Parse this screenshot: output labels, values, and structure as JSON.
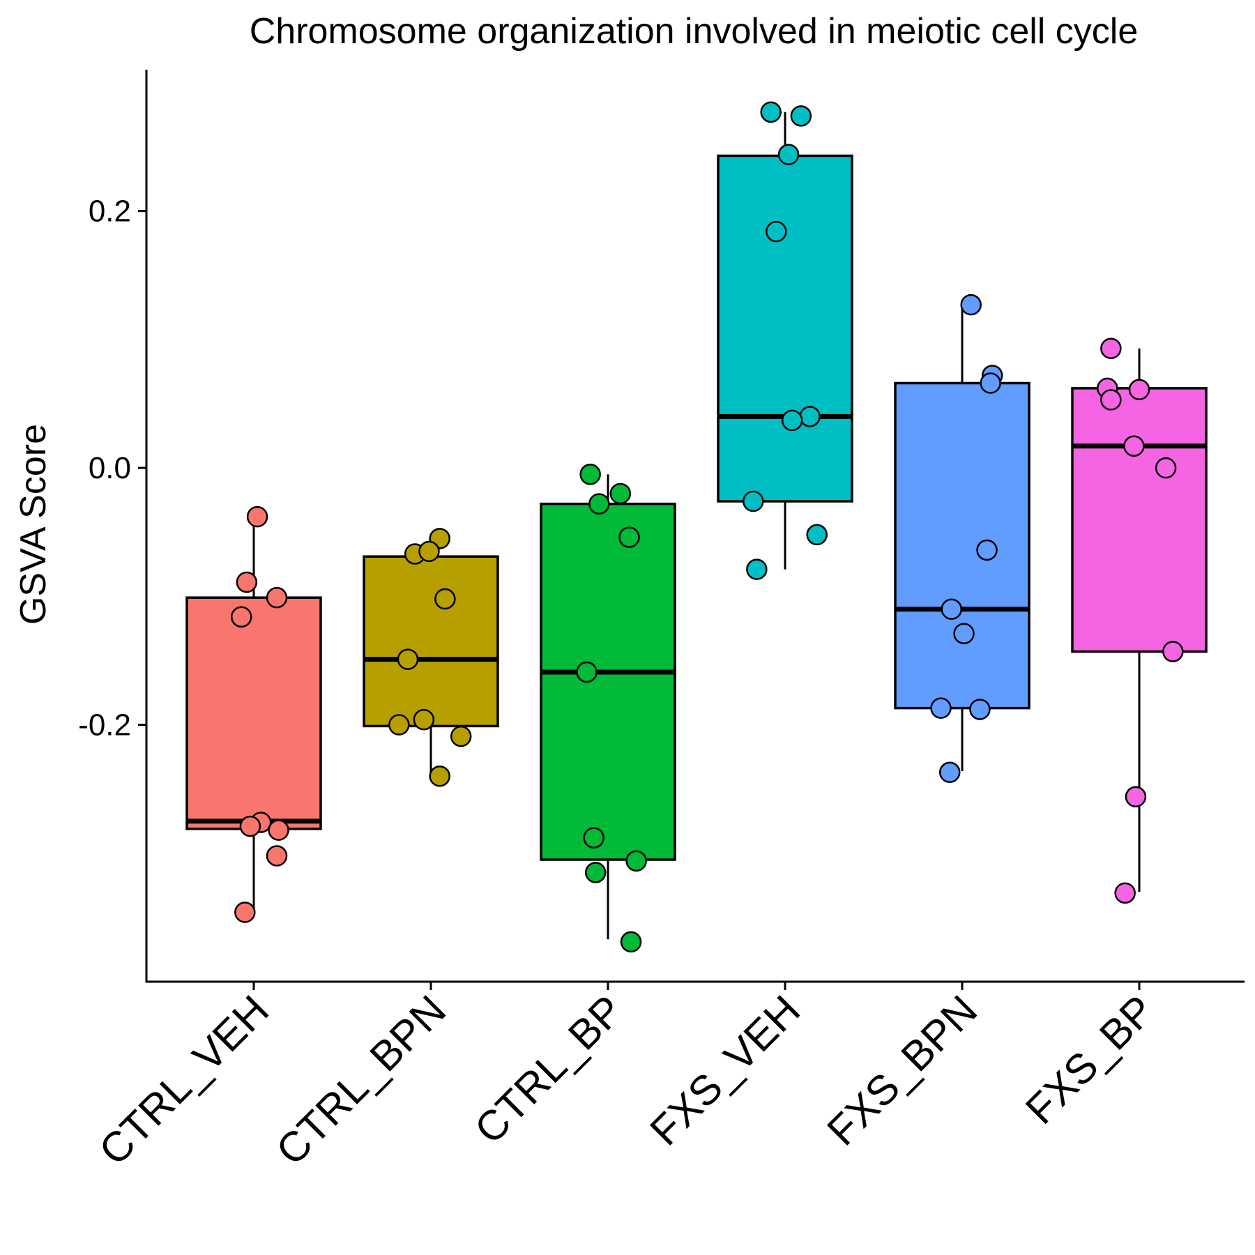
{
  "chart_data": {
    "type": "box",
    "title": "Chromosome organization involved in meiotic cell cycle",
    "xlabel": "",
    "ylabel": "GSVA Score",
    "ylim": [
      -0.4,
      0.31
    ],
    "yticks": [
      -0.2,
      0.0,
      0.2
    ],
    "ytick_labels": [
      "-0.2",
      "0.0",
      "0.2"
    ],
    "grid": false,
    "legend": "none",
    "categories": [
      "CTRL_VEH",
      "CTRL_BPN",
      "CTRL_BP",
      "FXS_VEH",
      "FXS_BPN",
      "FXS_BP"
    ],
    "colors": [
      "#F8766D",
      "#B79F00",
      "#00BA38",
      "#00BFC4",
      "#619CFF",
      "#F564E3"
    ],
    "boxes": [
      {
        "category": "CTRL_VEH",
        "whisker_low": -0.345,
        "q1": -0.281,
        "median": -0.275,
        "q3": -0.101,
        "whisker_high": -0.037
      },
      {
        "category": "CTRL_BPN",
        "whisker_low": -0.24,
        "q1": -0.201,
        "median": -0.149,
        "q3": -0.069,
        "whisker_high": -0.056
      },
      {
        "category": "CTRL_BP",
        "whisker_low": -0.367,
        "q1": -0.305,
        "median": -0.159,
        "q3": -0.028,
        "whisker_high": -0.005
      },
      {
        "category": "FXS_VEH",
        "whisker_low": -0.079,
        "q1": -0.026,
        "median": 0.04,
        "q3": 0.243,
        "whisker_high": 0.277
      },
      {
        "category": "FXS_BPN",
        "whisker_low": -0.236,
        "q1": -0.187,
        "median": -0.11,
        "q3": 0.066,
        "whisker_high": 0.126
      },
      {
        "category": "FXS_BP",
        "whisker_low": -0.33,
        "q1": -0.143,
        "median": 0.017,
        "q3": 0.062,
        "whisker_high": 0.093
      }
    ],
    "points": [
      {
        "category": "CTRL_VEH",
        "x_jitter": [
          0.02,
          -0.04,
          0.13,
          -0.07,
          0.04,
          0.14,
          -0.02,
          0.13,
          -0.05
        ],
        "y": [
          -0.038,
          -0.089,
          -0.101,
          -0.116,
          -0.276,
          -0.282,
          -0.279,
          -0.302,
          -0.346
        ]
      },
      {
        "category": "CTRL_BPN",
        "x_jitter": [
          0.05,
          -0.09,
          -0.01,
          0.08,
          -0.13,
          -0.04,
          -0.18,
          0.17,
          0.05
        ],
        "y": [
          -0.055,
          -0.067,
          -0.065,
          -0.102,
          -0.149,
          -0.196,
          -0.2,
          -0.209,
          -0.24
        ]
      },
      {
        "category": "CTRL_BP",
        "x_jitter": [
          -0.1,
          0.07,
          -0.05,
          0.12,
          -0.12,
          -0.08,
          -0.07,
          0.16,
          0.13
        ],
        "y": [
          -0.005,
          -0.02,
          -0.028,
          -0.054,
          -0.159,
          -0.288,
          -0.315,
          -0.306,
          -0.369
        ]
      },
      {
        "category": "FXS_VEH",
        "x_jitter": [
          -0.08,
          0.09,
          0.02,
          -0.05,
          0.14,
          0.04,
          -0.18,
          0.18,
          -0.16
        ],
        "y": [
          0.277,
          0.274,
          0.244,
          0.184,
          0.04,
          0.037,
          -0.026,
          -0.052,
          -0.079
        ]
      },
      {
        "category": "FXS_BPN",
        "x_jitter": [
          0.05,
          0.17,
          0.16,
          0.14,
          -0.06,
          0.01,
          -0.12,
          0.1,
          -0.07
        ],
        "y": [
          0.127,
          0.072,
          0.066,
          -0.064,
          -0.11,
          -0.129,
          -0.187,
          -0.188,
          -0.237
        ]
      },
      {
        "category": "FXS_BP",
        "x_jitter": [
          -0.16,
          -0.18,
          0.0,
          -0.16,
          -0.03,
          0.15,
          0.19,
          -0.02,
          -0.08
        ],
        "y": [
          0.093,
          0.062,
          0.061,
          0.053,
          0.017,
          0.0,
          -0.143,
          -0.256,
          -0.331
        ]
      }
    ]
  }
}
